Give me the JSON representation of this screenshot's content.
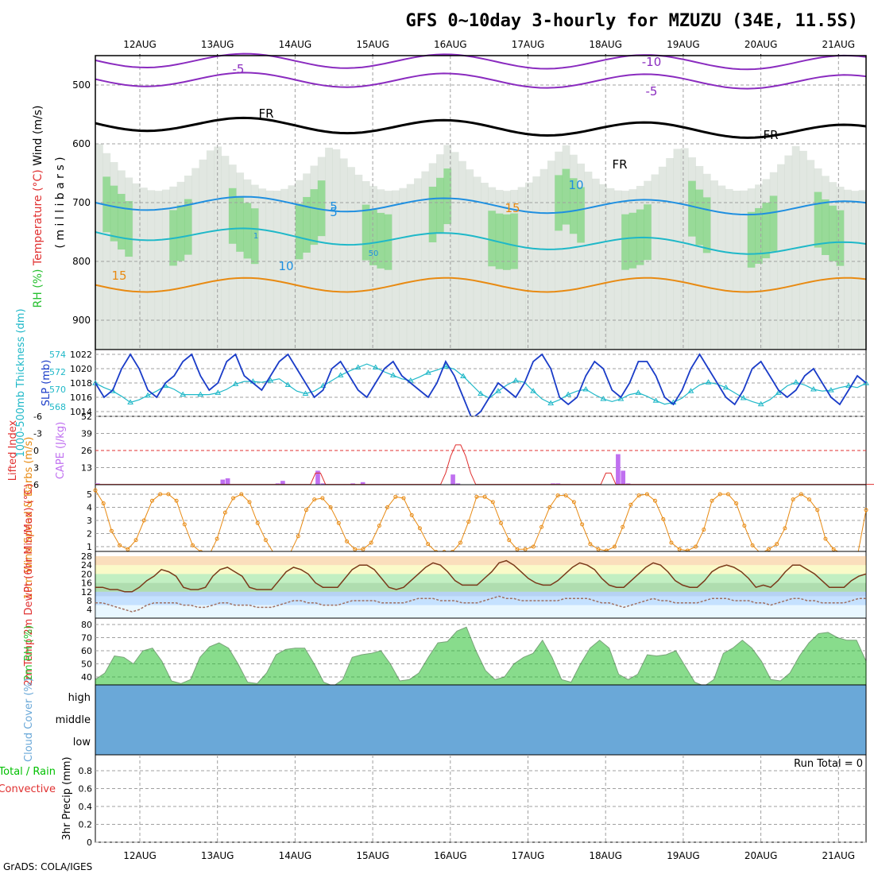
{
  "title": "GFS 0~10day 3-hourly for MZUZU (34E, 11.5S)",
  "footer": "GrADS: COLA/IGES",
  "colors": {
    "frame": "#000000",
    "grid": "#a0a0a0",
    "purple": "#8a2bbf",
    "cyan": "#1fb8c8",
    "sky": "#1f8fe0",
    "orange": "#e88a12",
    "crimson": "#d0106a",
    "navy": "#1a3cc8",
    "cape": "#c070f0",
    "li": "#e03030",
    "rh_green": "#27c030",
    "cloud_bg": "#6aa8d8",
    "precip_green": "#00c000"
  },
  "chart_data": [
    {
      "panel": "upper-air",
      "type": "heatmap",
      "x_ticks": [
        "12AUG",
        "13AUG",
        "14AUG",
        "15AUG",
        "16AUG",
        "17AUG",
        "18AUG",
        "19AUG",
        "20AUG",
        "21AUG"
      ],
      "ylabel_parts": [
        "RH (%)",
        "Temperature (°C)",
        "Wind (m/s)"
      ],
      "ylabel_units": "( m i l l i b a r s )",
      "yticks": [
        500,
        600,
        700,
        800,
        900
      ],
      "ylim": [
        450,
        950
      ],
      "contour_labels": [
        "-5",
        "-10",
        "-5",
        "FR",
        "FR",
        "FR",
        "5",
        "10",
        "15",
        "15",
        "10",
        "5",
        "1",
        "50"
      ],
      "isotherms": [
        {
          "name": "-10",
          "color": "purple",
          "x": [
            0,
            10
          ],
          "y": [
            458,
            462
          ]
        },
        {
          "name": "-5",
          "color": "purple",
          "x": [
            0,
            10
          ],
          "y": [
            490,
            495
          ]
        },
        {
          "name": "FR",
          "color": "black",
          "x": [
            0,
            10
          ],
          "y": [
            565,
            580
          ]
        },
        {
          "name": "5",
          "color": "sky",
          "x": [
            0,
            10
          ],
          "y": [
            700,
            710
          ]
        },
        {
          "name": "10",
          "color": "cyan",
          "x": [
            0,
            10
          ],
          "y": [
            750,
            780
          ]
        },
        {
          "name": "15",
          "color": "orange",
          "x": [
            0,
            10
          ],
          "y": [
            840,
            840
          ]
        }
      ]
    },
    {
      "panel": "slp-thickness",
      "type": "line",
      "ylabel_left": "1000-500mb Thickness (dm)",
      "ylabel_right": "SLP (mb)",
      "yticks_left": [
        "574",
        "572",
        "570",
        "568"
      ],
      "yticks_right": [
        "1022",
        "1020",
        "1018",
        "1016",
        "1014"
      ],
      "series": [
        {
          "name": "SLP (mb)",
          "color": "navy",
          "values": [
            1018,
            1016,
            1017,
            1020,
            1022,
            1020,
            1017,
            1016,
            1018,
            1019,
            1021,
            1022,
            1019,
            1017,
            1018,
            1021,
            1022,
            1019,
            1018,
            1017,
            1019,
            1021,
            1022,
            1020,
            1018,
            1016,
            1017,
            1020,
            1021,
            1019,
            1017,
            1016,
            1018,
            1020,
            1021,
            1019,
            1018,
            1017,
            1016,
            1018,
            1021,
            1019,
            1016,
            1013,
            1014,
            1016,
            1018,
            1017,
            1016,
            1018,
            1021,
            1022,
            1020,
            1016,
            1015,
            1016,
            1019,
            1021,
            1020,
            1017,
            1016,
            1018,
            1021,
            1021,
            1019,
            1016,
            1015,
            1017,
            1020,
            1022,
            1020,
            1018,
            1016,
            1015,
            1017,
            1020,
            1021,
            1019,
            1017,
            1016,
            1017,
            1019,
            1020,
            1018,
            1016,
            1015,
            1017,
            1019,
            1018
          ]
        },
        {
          "name": "Thickness (dm)",
          "color": "cyan",
          "values": [
            570.7,
            570.2,
            569.8,
            569.2,
            568.5,
            568.8,
            569.3,
            569.8,
            570.4,
            570.0,
            569.4,
            569.4,
            569.4,
            569.4,
            569.6,
            570.0,
            570.6,
            570.9,
            570.9,
            570.8,
            571.0,
            571.2,
            570.5,
            569.8,
            569.5,
            569.8,
            570.4,
            571.0,
            571.6,
            572.1,
            572.5,
            572.9,
            572.5,
            572.0,
            571.6,
            571.2,
            571.0,
            571.4,
            571.9,
            572.2,
            572.6,
            572.3,
            571.5,
            570.5,
            569.5,
            569.0,
            569.8,
            570.5,
            571.0,
            570.8,
            569.8,
            568.9,
            568.4,
            568.8,
            569.4,
            569.8,
            570.0,
            569.4,
            568.9,
            568.6,
            568.9,
            569.4,
            569.6,
            569.2,
            568.7,
            568.3,
            568.5,
            569.0,
            569.8,
            570.5,
            570.8,
            570.6,
            570.2,
            569.6,
            569.0,
            568.6,
            568.3,
            568.8,
            569.6,
            570.4,
            570.8,
            570.5,
            570.0,
            569.8,
            569.9,
            570.2,
            570.4,
            570.2,
            570.7
          ]
        }
      ]
    },
    {
      "panel": "cape-li",
      "type": "bar",
      "ylabel_left": "Lifted Index",
      "ylabel_right": "CAPE (J/kg)",
      "yticks_left": [
        "-6",
        "-3",
        "0",
        "3",
        "6"
      ],
      "yticks_right": [
        "52",
        "39",
        "26",
        "13"
      ],
      "cape_values": [
        1,
        0,
        0,
        0,
        0,
        0,
        0,
        0,
        0,
        0,
        0,
        0,
        0,
        0,
        0,
        0,
        0,
        0,
        0,
        0,
        0,
        0,
        0,
        0,
        0,
        4,
        5,
        0,
        0,
        0,
        0,
        0,
        0,
        0,
        0,
        0,
        1,
        3,
        0,
        0,
        0,
        0,
        0,
        0,
        11,
        1,
        0,
        0,
        0,
        0,
        0,
        1,
        0,
        2,
        0,
        0,
        0,
        0,
        0,
        0,
        0,
        0,
        0,
        0,
        0,
        0,
        0,
        0,
        0,
        0,
        0,
        8,
        1,
        0,
        0,
        0,
        0,
        0,
        0,
        0,
        0,
        0,
        0,
        0,
        0,
        0,
        0,
        0,
        0,
        0,
        0,
        1,
        1,
        0,
        0,
        0,
        0,
        0,
        0,
        0,
        0,
        0,
        0,
        0,
        24,
        11,
        1,
        0,
        0,
        0,
        0,
        0,
        0,
        0,
        0,
        0,
        0,
        0,
        0,
        0,
        0,
        0,
        0,
        0,
        0,
        0,
        0,
        0,
        0,
        0,
        0,
        0,
        0,
        0,
        0,
        0,
        0,
        0,
        0,
        0,
        0,
        0,
        0,
        0,
        0,
        0,
        0,
        0,
        0,
        0,
        0,
        0,
        0,
        0
      ],
      "li_values": [
        6,
        6,
        6,
        6,
        6,
        6,
        6,
        6,
        6,
        6,
        6,
        6,
        6,
        6,
        6,
        6,
        6,
        6,
        6,
        6,
        6,
        6,
        6,
        6,
        6,
        6,
        6,
        6,
        6,
        6,
        6,
        6,
        6,
        6,
        6,
        6,
        6,
        6,
        6,
        6,
        6,
        6,
        6,
        6,
        4,
        4,
        6,
        6,
        6,
        6,
        6,
        6,
        6,
        6,
        6,
        6,
        6,
        6,
        6,
        6,
        6,
        6,
        6,
        6,
        6,
        6,
        6,
        6,
        6,
        6,
        4,
        1,
        -1,
        -1,
        1,
        4,
        6,
        6,
        6,
        6,
        6,
        6,
        6,
        6,
        6,
        6,
        6,
        6,
        6,
        6,
        6,
        6,
        6,
        6,
        6,
        6,
        6,
        6,
        6,
        6,
        6,
        6,
        4,
        4,
        6,
        6,
        6,
        6,
        6,
        6,
        6,
        6,
        6,
        6,
        6,
        6,
        6,
        6,
        6,
        6,
        6,
        6,
        6,
        6,
        6,
        6,
        6,
        6,
        6,
        6,
        6,
        6,
        6,
        6,
        6,
        6,
        6,
        6,
        6,
        6,
        6,
        6,
        6,
        6,
        6,
        6,
        6,
        6,
        6,
        6,
        6,
        6,
        6,
        6,
        6,
        6,
        6,
        6,
        6,
        6,
        6,
        6,
        6,
        6,
        6,
        6,
        6,
        6
      ]
    },
    {
      "panel": "wind",
      "type": "line",
      "ylabel": "10m Wind Speed & Barbs (m/s)",
      "yticks": [
        "5",
        "4",
        "3",
        "2",
        "1"
      ],
      "series": [
        {
          "name": "10m Wind Speed",
          "color": "orange",
          "values": [
            5.3,
            4.3,
            2.2,
            1.1,
            0.8,
            1.5,
            3.0,
            4.5,
            5.0,
            5.0,
            4.5,
            2.7,
            1.1,
            0.6,
            0.3,
            1.6,
            3.6,
            4.7,
            5.0,
            4.4,
            2.8,
            1.5,
            0.5,
            0.5,
            0.5,
            1.8,
            3.8,
            4.6,
            4.7,
            4.0,
            2.8,
            1.4,
            0.8,
            0.8,
            1.3,
            2.6,
            4.0,
            4.8,
            4.7,
            3.4,
            2.4,
            1.2,
            0.6,
            0.6,
            0.6,
            1.3,
            2.9,
            4.8,
            4.8,
            4.4,
            2.8,
            1.5,
            0.8,
            0.8,
            1.0,
            2.5,
            4.0,
            4.9,
            4.9,
            4.4,
            2.7,
            1.2,
            0.8,
            0.7,
            1.0,
            2.5,
            4.2,
            4.9,
            5.0,
            4.5,
            3.1,
            1.3,
            0.8,
            0.7,
            1.0,
            2.3,
            4.5,
            5.0,
            5.0,
            4.3,
            2.6,
            1.1,
            0.5,
            0.8,
            1.2,
            2.4,
            4.6,
            5.0,
            4.6,
            3.8,
            1.6,
            0.8,
            0.5,
            0.5,
            0.5,
            3.8
          ]
        }
      ]
    },
    {
      "panel": "temperature",
      "type": "area",
      "ylabel": "2m Temp 2m DewPt (6hr Min/Max) (°C)",
      "yticks": [
        "28",
        "24",
        "20",
        "16",
        "12",
        "8",
        "4"
      ],
      "series": [
        {
          "name": "2m Temp",
          "color": "#7a3a1a",
          "values": [
            14,
            14,
            13,
            13,
            12,
            12,
            14,
            17,
            19,
            22,
            21,
            19,
            14,
            13,
            13,
            14,
            19,
            22,
            23,
            21,
            19,
            14,
            13,
            13,
            13,
            17,
            21,
            23,
            22,
            20,
            16,
            14,
            14,
            14,
            18,
            22,
            24,
            24,
            22,
            18,
            14,
            13,
            14,
            17,
            20,
            23,
            25,
            24,
            21,
            17,
            15,
            15,
            15,
            18,
            21,
            25,
            26,
            24,
            21,
            18,
            16,
            15,
            15,
            17,
            20,
            23,
            25,
            24,
            22,
            18,
            15,
            14,
            14,
            17,
            20,
            23,
            25,
            24,
            21,
            17,
            15,
            14,
            14,
            17,
            21,
            23,
            24,
            23,
            21,
            18,
            14,
            15,
            14,
            17,
            21,
            24,
            24,
            22,
            20,
            17,
            14,
            14,
            14,
            17,
            19,
            20
          ]
        },
        {
          "name": "2m DewPt",
          "color": "#a07060",
          "values": [
            7,
            7,
            6,
            5,
            4,
            3,
            4,
            6,
            7,
            7,
            7,
            7,
            6,
            6,
            5,
            5,
            6,
            7,
            7,
            6,
            6,
            6,
            5,
            5,
            5,
            6,
            7,
            8,
            8,
            7,
            7,
            6,
            6,
            6,
            7,
            8,
            8,
            8,
            8,
            7,
            7,
            7,
            7,
            8,
            9,
            9,
            9,
            8,
            8,
            8,
            7,
            7,
            7,
            8,
            9,
            10,
            9,
            9,
            8,
            8,
            8,
            8,
            8,
            8,
            9,
            9,
            9,
            9,
            8,
            7,
            7,
            6,
            5,
            6,
            7,
            8,
            9,
            8,
            8,
            7,
            7,
            7,
            7,
            8,
            9,
            9,
            9,
            8,
            8,
            8,
            7,
            7,
            6,
            7,
            8,
            9,
            9,
            8,
            8,
            7,
            7,
            7,
            7,
            8,
            9,
            9
          ]
        }
      ]
    },
    {
      "panel": "rh",
      "type": "area",
      "ylabel": "2m RH (%)",
      "yticks": [
        "80",
        "70",
        "60",
        "50",
        "40"
      ],
      "series": [
        {
          "name": "2m RH",
          "color": "rh_green",
          "values": [
            38,
            43,
            56,
            55,
            50,
            60,
            62,
            52,
            37,
            35,
            38,
            55,
            63,
            66,
            62,
            50,
            36,
            35,
            43,
            57,
            61,
            62,
            62,
            50,
            36,
            33,
            38,
            55,
            57,
            58,
            60,
            50,
            37,
            38,
            43,
            55,
            66,
            67,
            75,
            78,
            60,
            45,
            38,
            40,
            50,
            55,
            58,
            68,
            55,
            38,
            36,
            50,
            62,
            68,
            62,
            42,
            38,
            42,
            57,
            56,
            57,
            60,
            48,
            36,
            33,
            38,
            58,
            62,
            68,
            62,
            52,
            38,
            37,
            43,
            56,
            66,
            73,
            74,
            70,
            68,
            68,
            52
          ]
        }
      ]
    },
    {
      "panel": "cloud",
      "type": "bar",
      "ylabel": "Cloud Cover (%)",
      "levels": [
        "high",
        "middle",
        "low"
      ],
      "values": [
        0,
        0,
        0,
        0,
        0,
        0,
        0,
        0,
        0,
        0,
        0,
        0,
        0,
        0,
        0,
        0,
        0,
        0,
        0,
        0,
        0,
        0,
        0,
        0,
        0,
        0,
        0,
        0,
        0,
        0,
        0,
        0,
        0,
        0,
        0,
        0,
        0,
        0,
        0,
        0,
        0,
        0,
        0,
        0,
        0,
        0,
        0,
        0,
        0,
        0,
        0,
        0,
        0,
        0,
        0,
        0,
        0,
        0,
        0,
        0,
        0,
        0,
        0,
        0,
        0,
        0,
        0,
        0,
        0,
        0,
        0,
        0,
        0,
        0,
        0,
        0,
        0,
        0,
        0,
        0,
        0,
        0,
        0,
        0,
        0,
        0,
        0,
        0,
        0,
        0,
        0,
        0,
        0,
        0,
        0,
        0,
        0,
        0,
        0,
        0,
        0,
        0,
        0,
        0,
        0,
        0,
        0,
        0,
        0,
        0
      ]
    },
    {
      "panel": "precip",
      "type": "bar",
      "ylabel": "3hr Precip (mm)",
      "ylabel_total": "Total / Rain",
      "ylabel_conv": "Convective",
      "yticks": [
        "0.8",
        "0.6",
        "0.4",
        "0.2",
        "0"
      ],
      "run_total": "Run Total = 0",
      "x_ticks_bottom": [
        "12AUG",
        "13AUG",
        "14AUG",
        "15AUG",
        "16AUG",
        "17AUG",
        "18AUG",
        "19AUG",
        "20AUG",
        "21AUG"
      ]
    }
  ]
}
